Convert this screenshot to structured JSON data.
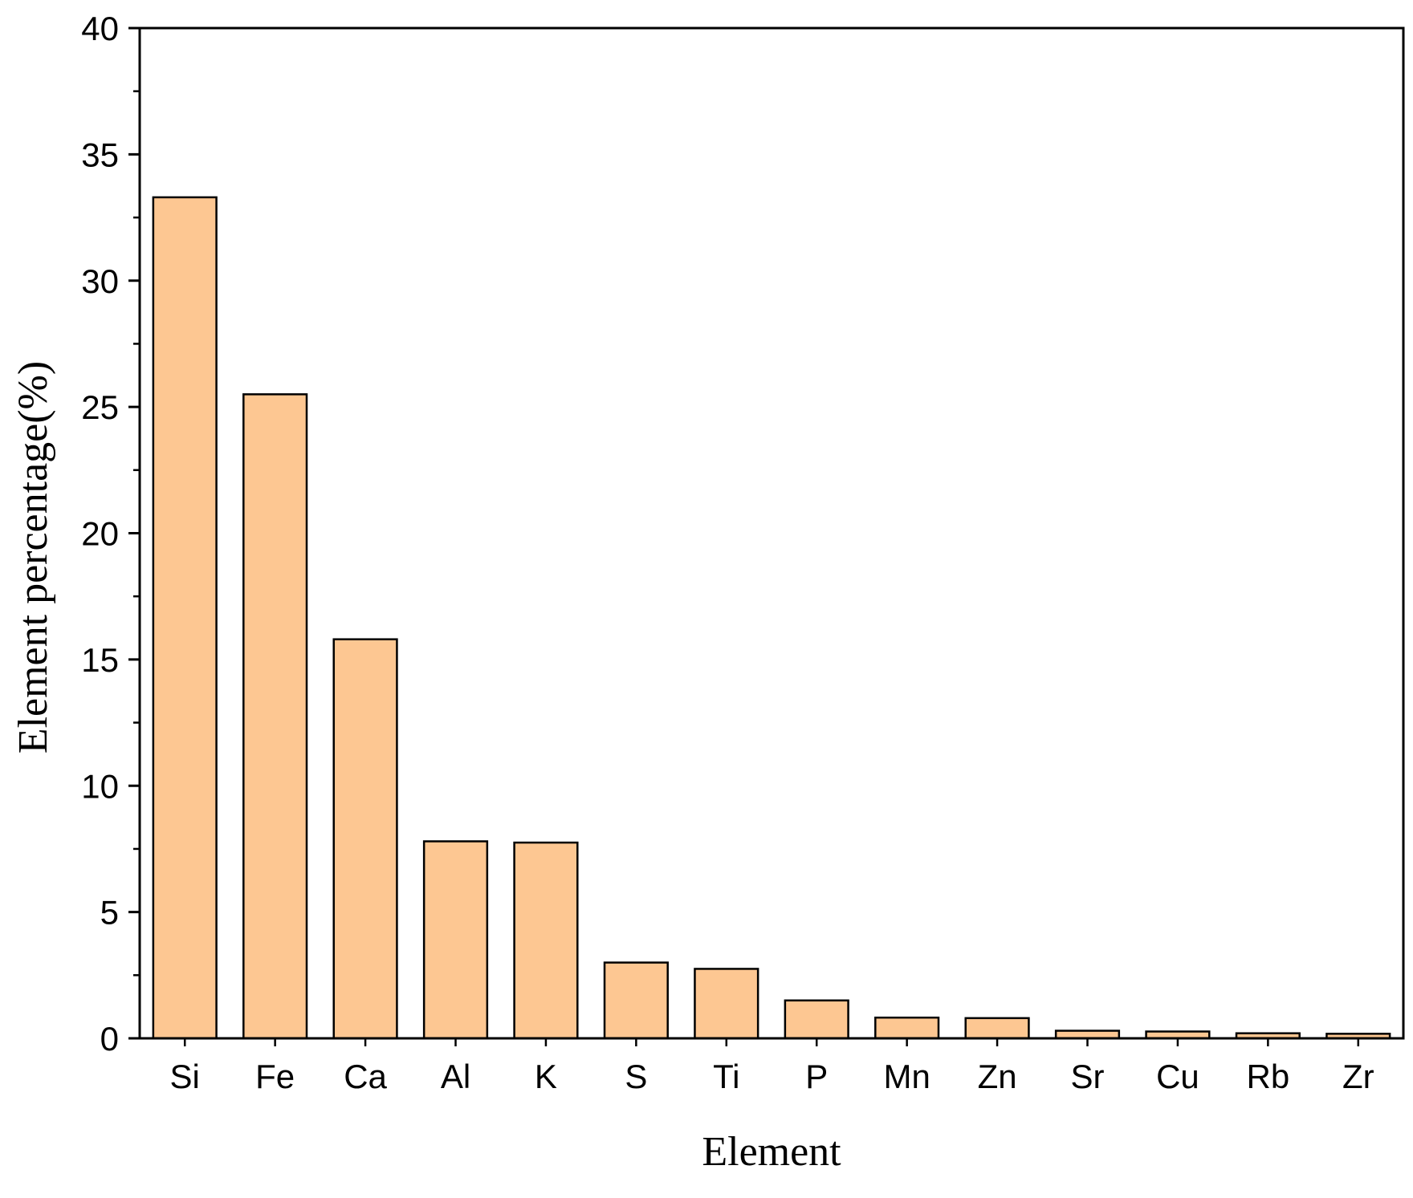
{
  "chart_data": {
    "type": "bar",
    "title": "",
    "xlabel": "Element",
    "ylabel": "Element percentage(%)",
    "ylim": [
      0,
      40
    ],
    "yticks": [
      0,
      5,
      10,
      15,
      20,
      25,
      30,
      35,
      40
    ],
    "ytick_labels": [
      "0",
      "5",
      "10",
      "15",
      "20",
      "25",
      "30",
      "35",
      "40"
    ],
    "grid": false,
    "legend": "none",
    "categories": [
      "Si",
      "Fe",
      "Ca",
      "Al",
      "K",
      "S",
      "Ti",
      "P",
      "Mn",
      "Zn",
      "Sr",
      "Cu",
      "Rb",
      "Zr"
    ],
    "values": [
      33.3,
      25.5,
      15.8,
      7.8,
      7.75,
      3.0,
      2.75,
      1.5,
      0.82,
      0.8,
      0.3,
      0.27,
      0.2,
      0.18
    ],
    "colors": {
      "bar_fill": "#fdc792",
      "bar_stroke": "#000000",
      "axis": "#000000"
    }
  }
}
